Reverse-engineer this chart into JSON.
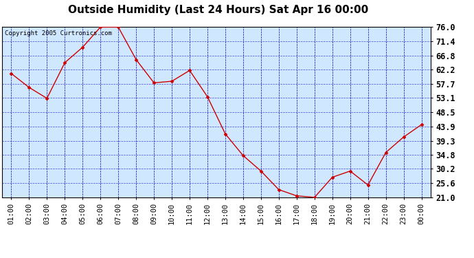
{
  "title": "Outside Humidity (Last 24 Hours) Sat Apr 16 00:00",
  "copyright": "Copyright 2005 Curtronics.com",
  "x_labels": [
    "01:00",
    "02:00",
    "03:00",
    "04:00",
    "05:00",
    "06:00",
    "07:00",
    "08:00",
    "09:00",
    "10:00",
    "11:00",
    "12:00",
    "13:00",
    "14:00",
    "15:00",
    "16:00",
    "17:00",
    "18:00",
    "19:00",
    "20:00",
    "21:00",
    "22:00",
    "23:00",
    "00:00"
  ],
  "y_values": [
    61.0,
    56.5,
    53.0,
    64.5,
    69.5,
    76.0,
    76.0,
    65.5,
    58.0,
    58.5,
    62.0,
    53.5,
    41.5,
    34.5,
    29.5,
    23.5,
    21.5,
    21.0,
    27.5,
    29.5,
    25.0,
    35.5,
    40.5,
    44.5
  ],
  "ylim": [
    21.0,
    76.0
  ],
  "yticks": [
    21.0,
    25.6,
    30.2,
    34.8,
    39.3,
    43.9,
    48.5,
    53.1,
    57.7,
    62.2,
    66.8,
    71.4,
    76.0
  ],
  "line_color": "#cc0000",
  "marker_color": "#cc0000",
  "bg_color": "#d0e8ff",
  "fig_bg": "#ffffff",
  "grid_color": "#3333cc",
  "title_color": "#000000",
  "title_fontsize": 11,
  "copyright_fontsize": 6.5,
  "tick_fontsize": 7.5,
  "ytick_fontsize": 8.5
}
